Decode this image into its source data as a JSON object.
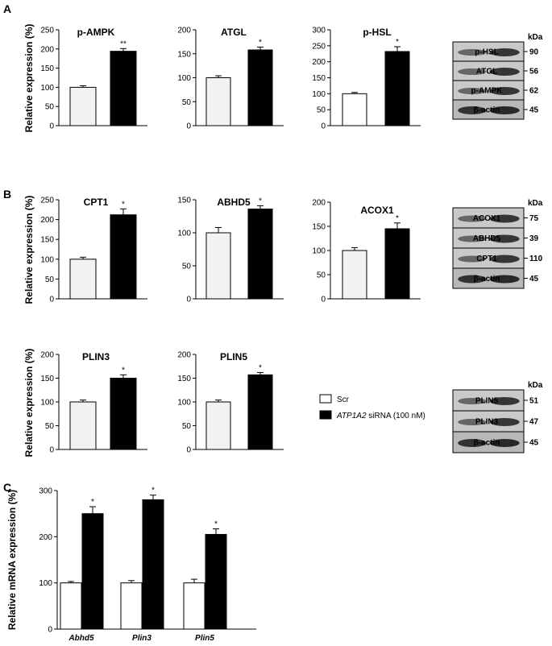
{
  "panels": {
    "A": "A",
    "B": "B",
    "C": "C"
  },
  "colors": {
    "scr": "#f2f2f2",
    "sirna": "#000000",
    "axis": "#000000"
  },
  "legend": {
    "items": [
      {
        "label": "Scr",
        "fill": "#ffffff"
      },
      {
        "label_italic": "ATP1A2",
        "label_rest": " siRNA (100 nM)",
        "fill": "#000000"
      }
    ]
  },
  "ylabel_protein": "Relative expression (%)",
  "ylabel_mrna": "Relative mRNA expression (%)",
  "kda_label": "kDa",
  "chart_data": [
    {
      "id": "p-AMPK",
      "type": "bar",
      "title": "p-AMPK",
      "ylabel": "Relative expression (%)",
      "ylim": [
        0,
        250
      ],
      "yticks": [
        0,
        50,
        100,
        150,
        200,
        250
      ],
      "series": [
        {
          "values": [
            100,
            194
          ],
          "errors": [
            4,
            7
          ]
        }
      ],
      "stars": [
        "",
        "**"
      ]
    },
    {
      "id": "ATGL",
      "type": "bar",
      "title": "ATGL",
      "ylabel": "",
      "ylim": [
        0,
        200
      ],
      "yticks": [
        0,
        50,
        100,
        150,
        200
      ],
      "series": [
        {
          "values": [
            100,
            158
          ],
          "errors": [
            4,
            6
          ]
        }
      ],
      "stars": [
        "",
        "*"
      ]
    },
    {
      "id": "p-HSL",
      "type": "bar",
      "title": "p-HSL",
      "ylabel": "",
      "ylim": [
        0,
        300
      ],
      "yticks": [
        0,
        50,
        100,
        150,
        200,
        250,
        300
      ],
      "series": [
        {
          "values": [
            100,
            232
          ],
          "errors": [
            4,
            15
          ]
        }
      ],
      "stars": [
        "",
        "*"
      ]
    },
    {
      "id": "CPT1",
      "type": "bar",
      "title": "CPT1",
      "ylabel": "Relative expression (%)",
      "ylim": [
        0,
        250
      ],
      "yticks": [
        0,
        50,
        100,
        150,
        200,
        250
      ],
      "series": [
        {
          "values": [
            100,
            212
          ],
          "errors": [
            5,
            15
          ]
        }
      ],
      "stars": [
        "",
        "*"
      ]
    },
    {
      "id": "ABHD5",
      "type": "bar",
      "title": "ABHD5",
      "ylabel": "",
      "ylim": [
        0,
        150
      ],
      "yticks": [
        0,
        50,
        100,
        150
      ],
      "series": [
        {
          "values": [
            100,
            136
          ],
          "errors": [
            8,
            5
          ]
        }
      ],
      "stars": [
        "",
        "*"
      ]
    },
    {
      "id": "ACOX1",
      "type": "bar",
      "title": "ACOX1",
      "ylabel": "",
      "ylim": [
        0,
        200
      ],
      "yticks": [
        0,
        50,
        100,
        150,
        200
      ],
      "series": [
        {
          "values": [
            100,
            145
          ],
          "errors": [
            6,
            12
          ]
        }
      ],
      "stars": [
        "",
        "*"
      ]
    },
    {
      "id": "PLIN3",
      "type": "bar",
      "title": "PLIN3",
      "ylabel": "Relative expression (%)",
      "ylim": [
        0,
        200
      ],
      "yticks": [
        0,
        50,
        100,
        150,
        200
      ],
      "series": [
        {
          "values": [
            100,
            150
          ],
          "errors": [
            4,
            7
          ]
        }
      ],
      "stars": [
        "",
        "*"
      ]
    },
    {
      "id": "PLIN5",
      "type": "bar",
      "title": "PLIN5",
      "ylabel": "",
      "ylim": [
        0,
        200
      ],
      "yticks": [
        0,
        50,
        100,
        150,
        200
      ],
      "series": [
        {
          "values": [
            100,
            157
          ],
          "errors": [
            4,
            5
          ]
        }
      ],
      "stars": [
        "",
        "*"
      ]
    },
    {
      "id": "mRNA",
      "type": "bar",
      "title": "",
      "ylabel": "Relative mRNA expression (%)",
      "ylim": [
        0,
        300
      ],
      "yticks": [
        0,
        100,
        200,
        300
      ],
      "categories": [
        "Abhd5",
        "Plin3",
        "Plin5"
      ],
      "series": [
        {
          "values": [
            100,
            100,
            100
          ],
          "errors": [
            3,
            5,
            8
          ]
        },
        {
          "values": [
            250,
            280,
            205
          ],
          "errors": [
            15,
            10,
            12
          ]
        }
      ],
      "stars": [
        [
          "",
          "*"
        ],
        [
          "",
          "*"
        ],
        [
          "",
          "*"
        ]
      ]
    }
  ],
  "blots": [
    {
      "id": "blotA",
      "rows": [
        {
          "label": "p-HSL",
          "kda": "90"
        },
        {
          "label": "ATGL",
          "kda": "56"
        },
        {
          "label": "p-AMPK",
          "kda": "62"
        },
        {
          "label": "β-actin",
          "kda": "45"
        }
      ]
    },
    {
      "id": "blotB",
      "rows": [
        {
          "label": "ACOX1",
          "kda": "75"
        },
        {
          "label": "ABHD5",
          "kda": "39"
        },
        {
          "label": "CPT1",
          "kda": "110"
        },
        {
          "label": "β-actin",
          "kda": "45"
        }
      ]
    },
    {
      "id": "blotB2",
      "rows": [
        {
          "label": "PLIN5",
          "kda": "51"
        },
        {
          "label": "PLIN3",
          "kda": "47"
        },
        {
          "label": "β-actin",
          "kda": "45"
        }
      ]
    }
  ]
}
